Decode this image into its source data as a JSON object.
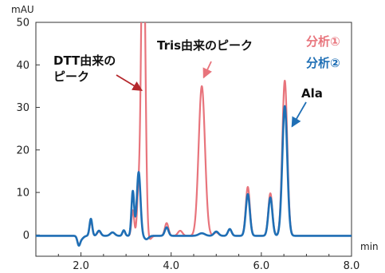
{
  "chart_data": {
    "type": "line",
    "y_unit": "mAU",
    "x_unit": "min",
    "xlim": [
      1.0,
      8.0
    ],
    "ylim": [
      -5,
      50
    ],
    "y_ticks": [
      0,
      10,
      20,
      30,
      40,
      50
    ],
    "y_tick_labels": [
      "0",
      "10",
      "20",
      "30",
      "40",
      "50"
    ],
    "x_ticks": [
      2.0,
      4.0,
      6.0,
      8.0
    ],
    "x_tick_labels": [
      "2.0",
      "4.0",
      "6.0",
      "8.0"
    ],
    "grid": false,
    "legend_position": "top-right",
    "series": [
      {
        "name": "分析①",
        "color": "#e8747c",
        "baseline": -0.2,
        "peaks": [
          {
            "rt": 1.95,
            "h": -1.6,
            "w": 0.03
          },
          {
            "rt": 2.0,
            "h": -0.8,
            "w": 0.05
          },
          {
            "rt": 2.22,
            "h": 3.5,
            "w": 0.03
          },
          {
            "rt": 2.4,
            "h": 1.0,
            "w": 0.04
          },
          {
            "rt": 2.7,
            "h": 0.8,
            "w": 0.05
          },
          {
            "rt": 2.95,
            "h": 1.2,
            "w": 0.03
          },
          {
            "rt": 3.15,
            "h": 6.0,
            "w": 0.03
          },
          {
            "rt": 3.27,
            "h": 8.0,
            "w": 0.03
          },
          {
            "rt": 3.38,
            "h": 80.0,
            "w": 0.045
          },
          {
            "rt": 3.5,
            "h": -1.2,
            "w": 0.05
          },
          {
            "rt": 3.9,
            "h": 3.0,
            "w": 0.04
          },
          {
            "rt": 4.2,
            "h": 1.2,
            "w": 0.05
          },
          {
            "rt": 4.68,
            "h": 35.2,
            "w": 0.07
          },
          {
            "rt": 5.0,
            "h": 0.8,
            "w": 0.05
          },
          {
            "rt": 5.3,
            "h": 1.5,
            "w": 0.04
          },
          {
            "rt": 5.7,
            "h": 11.5,
            "w": 0.045
          },
          {
            "rt": 6.2,
            "h": 10.0,
            "w": 0.045
          },
          {
            "rt": 6.52,
            "h": 36.5,
            "w": 0.055
          }
        ]
      },
      {
        "name": "分析②",
        "color": "#1f6fb5",
        "baseline": -0.2,
        "peaks": [
          {
            "rt": 1.95,
            "h": -1.8,
            "w": 0.03
          },
          {
            "rt": 2.0,
            "h": -0.8,
            "w": 0.05
          },
          {
            "rt": 2.22,
            "h": 4.0,
            "w": 0.03
          },
          {
            "rt": 2.4,
            "h": 1.2,
            "w": 0.04
          },
          {
            "rt": 2.7,
            "h": 0.8,
            "w": 0.05
          },
          {
            "rt": 2.95,
            "h": 1.3,
            "w": 0.03
          },
          {
            "rt": 3.15,
            "h": 10.5,
            "w": 0.03
          },
          {
            "rt": 3.28,
            "h": 15.0,
            "w": 0.04
          },
          {
            "rt": 3.45,
            "h": -0.8,
            "w": 0.05
          },
          {
            "rt": 3.9,
            "h": 2.0,
            "w": 0.04
          },
          {
            "rt": 4.68,
            "h": 0.6,
            "w": 0.07
          },
          {
            "rt": 5.0,
            "h": 1.0,
            "w": 0.05
          },
          {
            "rt": 5.3,
            "h": 1.6,
            "w": 0.04
          },
          {
            "rt": 5.7,
            "h": 9.8,
            "w": 0.045
          },
          {
            "rt": 6.2,
            "h": 9.0,
            "w": 0.045
          },
          {
            "rt": 6.52,
            "h": 30.5,
            "w": 0.055
          }
        ]
      }
    ],
    "annotations": [
      {
        "id": "dtt",
        "lines": [
          "DTT由来の",
          "ピーク"
        ],
        "color": "#b5282d",
        "target": {
          "x": 3.35,
          "y": 34
        }
      },
      {
        "id": "tris",
        "lines": [
          "Tris由来のピーク"
        ],
        "color": "#e8747c",
        "target": {
          "x": 4.72,
          "y": 37
        }
      },
      {
        "id": "ala",
        "lines": [
          "Ala"
        ],
        "color": "#1f6fb5",
        "target": {
          "x": 6.68,
          "y": 25.5
        }
      }
    ]
  }
}
